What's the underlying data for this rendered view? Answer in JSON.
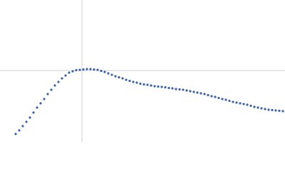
{
  "chart_data": {
    "type": "scatter",
    "color": "#3a62b0",
    "xlim": [
      0,
      400
    ],
    "ylim": [
      0,
      200
    ],
    "xticks": [
      115
    ],
    "yticks": [
      101
    ],
    "grid": true,
    "x": [
      22,
      27,
      32,
      37,
      42,
      47,
      52,
      57,
      62,
      67,
      72,
      77,
      82,
      87,
      92,
      97,
      102,
      107,
      112,
      117,
      122,
      127,
      132,
      137,
      142,
      147,
      152,
      157,
      162,
      167,
      172,
      177,
      182,
      187,
      192,
      197,
      202,
      207,
      212,
      217,
      222,
      227,
      232,
      237,
      242,
      247,
      252,
      257,
      262,
      267,
      272,
      277,
      282,
      287,
      292,
      297,
      302,
      307,
      312,
      317,
      322,
      327,
      332,
      337,
      342,
      347,
      352,
      357,
      362,
      367,
      372,
      377,
      382,
      387,
      392,
      397
    ],
    "values": [
      12,
      17,
      23,
      29,
      35,
      42,
      49,
      55,
      61,
      68,
      74,
      80,
      85,
      90,
      94,
      98,
      100,
      101.5,
      102,
      102.5,
      103,
      103,
      102.5,
      102,
      100.5,
      99,
      97,
      95,
      93,
      91.5,
      90,
      88,
      86.5,
      85,
      84,
      82.5,
      81.5,
      81,
      80,
      79,
      78.5,
      78,
      77.5,
      76.5,
      76,
      75,
      74.5,
      74,
      73,
      72,
      71,
      70,
      69,
      68,
      66.5,
      65,
      64,
      62.5,
      61,
      60,
      58.5,
      57,
      56,
      55,
      54,
      53,
      51.5,
      50,
      49,
      48,
      47,
      46,
      45.5,
      45,
      44.5,
      44
    ]
  }
}
